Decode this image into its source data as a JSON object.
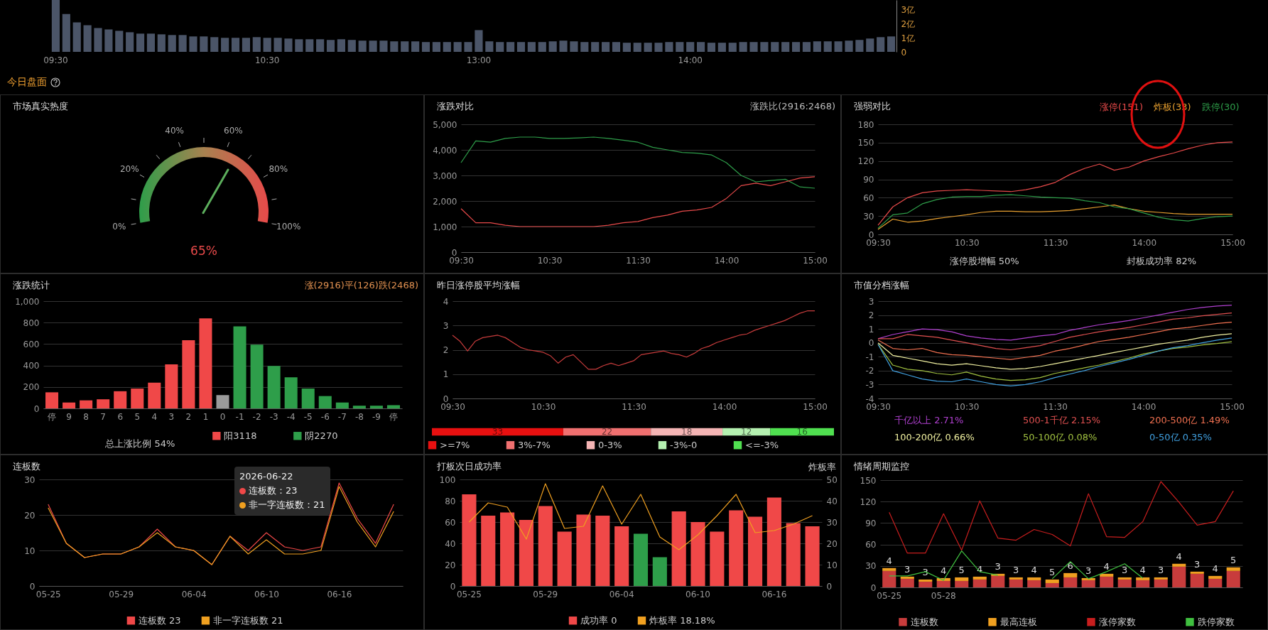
{
  "chart_data": [
    {
      "type": "bar",
      "categories": [
        "09:30",
        null,
        null,
        null,
        null,
        null,
        null,
        null,
        null,
        null,
        null,
        null,
        null,
        null,
        null,
        null,
        null,
        null,
        null,
        null,
        "10:30",
        null,
        null,
        null,
        null,
        null,
        null,
        null,
        null,
        null,
        null,
        null,
        null,
        null,
        null,
        null,
        null,
        null,
        null,
        null,
        "13:00",
        null,
        null,
        null,
        null,
        null,
        null,
        null,
        null,
        null,
        null,
        null,
        null,
        null,
        null,
        null,
        null,
        null,
        null,
        null,
        "14:00",
        null,
        null,
        null,
        null,
        null,
        null,
        null,
        null,
        null,
        null,
        null,
        null,
        null,
        null,
        null,
        null,
        null,
        null,
        null
      ],
      "values": [
        3.7,
        2.7,
        2.1,
        1.9,
        1.7,
        1.6,
        1.5,
        1.4,
        1.3,
        1.3,
        1.25,
        1.2,
        1.2,
        1.1,
        1.1,
        1.05,
        1.0,
        1.0,
        1.0,
        1.05,
        1.0,
        1.0,
        0.95,
        0.9,
        0.9,
        0.9,
        0.85,
        0.9,
        0.85,
        0.8,
        0.8,
        0.8,
        0.75,
        0.75,
        0.75,
        0.7,
        0.7,
        0.7,
        0.7,
        0.7,
        1.55,
        0.75,
        0.7,
        0.7,
        0.7,
        0.7,
        0.7,
        0.75,
        0.8,
        0.75,
        0.7,
        0.7,
        0.7,
        0.7,
        0.65,
        0.65,
        0.65,
        0.65,
        0.7,
        0.7,
        0.7,
        0.7,
        0.65,
        0.65,
        0.65,
        0.7,
        0.7,
        0.7,
        0.7,
        0.7,
        0.7,
        0.7,
        0.75,
        0.75,
        0.75,
        0.8,
        0.85,
        0.95,
        1.05,
        1.1
      ],
      "color": "#4b5568",
      "ylim": [
        0,
        3.7
      ],
      "yticks": [
        0,
        {
          "value": 1,
          "label": "1亿"
        },
        {
          "value": 2,
          "label": "2亿"
        },
        {
          "value": 3,
          "label": "3亿"
        }
      ],
      "annotations": [
        "今日盘面"
      ]
    },
    {
      "type": "other",
      "title": "市场真实热度",
      "values": [
        65
      ],
      "value_labels": [
        "65%"
      ],
      "annotations": [
        "0%",
        "20%",
        "40%",
        "60%",
        "80%",
        "100%"
      ]
    },
    {
      "type": "line",
      "title": "涨跌对比",
      "categories": [
        "09:30",
        null,
        null,
        null,
        null,
        null,
        "10:30",
        null,
        null,
        null,
        null,
        null,
        "11:30",
        null,
        null,
        null,
        null,
        null,
        "14:00",
        null,
        null,
        null,
        null,
        null,
        "15:00"
      ],
      "series": [
        {
          "color": "#2e9e4a",
          "values": [
            3500,
            4350,
            4300,
            4450,
            4500,
            4500,
            4450,
            4450,
            4470,
            4500,
            4450,
            4380,
            4300,
            4100,
            4000,
            3900,
            3870,
            3800,
            3500,
            3000,
            2750,
            2800,
            2850,
            2550,
            2500
          ]
        },
        {
          "color": "#e84a4a",
          "values": [
            1700,
            1150,
            1150,
            1050,
            1000,
            1000,
            1000,
            1000,
            1000,
            1000,
            1050,
            1150,
            1200,
            1350,
            1450,
            1600,
            1650,
            1750,
            2100,
            2600,
            2700,
            2600,
            2750,
            2900,
            2950
          ]
        }
      ],
      "ylim": [
        0,
        5000
      ],
      "yticks": [
        0,
        {
          "value": 1000,
          "label": "1,000"
        },
        {
          "value": 2000,
          "label": "2,000"
        },
        {
          "value": 3000,
          "label": "3,000"
        },
        {
          "value": 4000,
          "label": "4,000"
        },
        {
          "value": 5000,
          "label": "5,000"
        }
      ],
      "grid": "y",
      "annotations": [
        "涨跌比(2916:2468)"
      ]
    },
    {
      "type": "line",
      "title": "强弱对比",
      "categories": [
        "09:30",
        null,
        null,
        null,
        null,
        null,
        "10:30",
        null,
        null,
        null,
        null,
        null,
        "11:30",
        null,
        null,
        null,
        null,
        null,
        "14:00",
        null,
        null,
        null,
        null,
        null,
        "15:00"
      ],
      "series": [
        {
          "name": "涨停(151)",
          "color": "#e84a4a",
          "values": [
            15,
            45,
            60,
            68,
            71,
            72,
            73,
            72,
            71,
            70,
            73,
            78,
            85,
            98,
            108,
            115,
            105,
            110,
            120,
            127,
            133,
            140,
            146,
            150,
            151
          ]
        },
        {
          "name": "炸板(33)",
          "color": "#e8a030",
          "values": [
            8,
            25,
            20,
            22,
            26,
            29,
            32,
            36,
            38,
            38,
            37,
            37,
            38,
            39,
            42,
            45,
            48,
            42,
            38,
            36,
            34,
            33,
            33,
            33,
            33
          ]
        },
        {
          "name": "跌停(30)",
          "color": "#2e9e4a",
          "values": [
            10,
            32,
            35,
            50,
            57,
            61,
            62,
            62,
            64,
            65,
            63,
            61,
            60,
            59,
            55,
            52,
            45,
            42,
            35,
            28,
            24,
            22,
            26,
            29,
            30
          ]
        }
      ],
      "ylim": [
        0,
        180
      ],
      "yticks": [
        0,
        30,
        60,
        90,
        120,
        150,
        180
      ],
      "grid": "y",
      "legend": "top right",
      "annotations": [
        "涨停股增幅 50%",
        "封板成功率 82%"
      ]
    },
    {
      "type": "bar",
      "title": "涨跌统计",
      "categories": [
        "停",
        "9",
        "8",
        "7",
        "6",
        "5",
        "4",
        "3",
        "2",
        "1",
        "0",
        "-1",
        "-2",
        "-3",
        "-4",
        "-5",
        "-6",
        "-7",
        "-8",
        "-9",
        "停"
      ],
      "series": [
        {
          "name": "阳3118",
          "color": "#f04848",
          "values": [
            150,
            55,
            75,
            85,
            160,
            185,
            240,
            410,
            635,
            840,
            null,
            null,
            null,
            null,
            null,
            null,
            null,
            null,
            null,
            null,
            null
          ]
        },
        {
          "color": "#9a9a9a",
          "values": [
            null,
            null,
            null,
            null,
            null,
            null,
            null,
            null,
            null,
            null,
            125,
            null,
            null,
            null,
            null,
            null,
            null,
            null,
            null,
            null,
            null
          ]
        },
        {
          "name": "阴2270",
          "color": "#2e9e4a",
          "values": [
            null,
            null,
            null,
            null,
            null,
            null,
            null,
            null,
            null,
            null,
            null,
            765,
            595,
            395,
            290,
            185,
            115,
            55,
            25,
            25,
            30
          ]
        }
      ],
      "ylim": [
        0,
        1000
      ],
      "yticks": [
        0,
        200,
        400,
        600,
        800,
        {
          "value": 1000,
          "label": "1,000"
        }
      ],
      "grid": "y",
      "legend": "bottom",
      "annotations": [
        "涨(2916)平(126)跌(2468)",
        "总上涨比例 54%"
      ]
    },
    {
      "type": "line",
      "title": "昨日涨停股平均涨幅",
      "categories": [
        "09:30",
        null,
        null,
        null,
        null,
        null,
        null,
        null,
        null,
        null,
        null,
        null,
        "10:30",
        null,
        null,
        null,
        null,
        null,
        null,
        null,
        null,
        null,
        null,
        null,
        "11:30",
        null,
        null,
        null,
        null,
        null,
        null,
        null,
        null,
        null,
        null,
        null,
        "14:00",
        null,
        null,
        null,
        null,
        null,
        null,
        null,
        null,
        null,
        null,
        null,
        "15:00"
      ],
      "values": [
        2.6,
        2.35,
        1.95,
        2.35,
        2.5,
        2.55,
        2.6,
        2.5,
        2.3,
        2.1,
        2.0,
        1.95,
        1.9,
        1.75,
        1.45,
        1.7,
        1.8,
        1.5,
        1.2,
        1.2,
        1.35,
        1.45,
        1.35,
        1.45,
        1.55,
        1.8,
        1.85,
        1.9,
        1.95,
        1.85,
        1.8,
        1.7,
        1.85,
        2.05,
        2.15,
        2.3,
        2.4,
        2.5,
        2.6,
        2.65,
        2.8,
        2.9,
        3.0,
        3.1,
        3.2,
        3.35,
        3.5,
        3.6,
        3.6
      ],
      "color": "#c83c3c",
      "ylim": [
        0,
        4
      ],
      "yticks": [
        0,
        1,
        2,
        3,
        4
      ],
      "grid": "y"
    },
    {
      "type": "bar",
      "orientation": "horizontal",
      "stacked": true,
      "categories": [
        null
      ],
      "series": [
        {
          "name": ">=7%",
          "color": "#e81010",
          "values": [
            33
          ]
        },
        {
          "name": "3%-7%",
          "color": "#f07070",
          "values": [
            22
          ]
        },
        {
          "name": "0-3%",
          "color": "#f4b4b4",
          "values": [
            18
          ]
        },
        {
          "name": "-3%-0",
          "color": "#b4f0b0",
          "values": [
            12
          ]
        },
        {
          "name": "<=-3%",
          "color": "#50e050",
          "values": [
            16
          ]
        }
      ],
      "data_labels": true,
      "legend": "bottom",
      "tick_labels": false
    },
    {
      "type": "line",
      "title": "市值分档涨幅",
      "categories": [
        "09:30",
        null,
        null,
        null,
        null,
        null,
        "10:30",
        null,
        null,
        null,
        null,
        null,
        "11:30",
        null,
        null,
        null,
        null,
        null,
        "14:00",
        null,
        null,
        null,
        null,
        null,
        "15:00"
      ],
      "series": [
        {
          "name": "千亿以上 2.71%",
          "color": "#b040d0",
          "values": [
            0.3,
            0.6,
            0.8,
            1.0,
            0.95,
            0.8,
            0.5,
            0.35,
            0.25,
            0.2,
            0.35,
            0.5,
            0.6,
            0.9,
            1.1,
            1.3,
            1.45,
            1.6,
            1.8,
            2.0,
            2.2,
            2.4,
            2.55,
            2.65,
            2.71
          ]
        },
        {
          "name": "500-1千亿 2.15%",
          "color": "#e05050",
          "values": [
            0.3,
            0.3,
            0.6,
            0.5,
            0.4,
            0.2,
            0.0,
            -0.2,
            -0.4,
            -0.5,
            -0.35,
            -0.2,
            0.1,
            0.4,
            0.6,
            0.8,
            0.95,
            1.1,
            1.3,
            1.5,
            1.7,
            1.8,
            1.95,
            2.05,
            2.15
          ]
        },
        {
          "name": "200-500亿 1.49%",
          "color": "#f07050",
          "values": [
            0.2,
            -0.4,
            -0.5,
            -0.4,
            -0.7,
            -0.85,
            -0.9,
            -1.0,
            -1.1,
            -1.2,
            -1.05,
            -0.9,
            -0.6,
            -0.4,
            -0.15,
            0.1,
            0.25,
            0.4,
            0.6,
            0.8,
            1.0,
            1.1,
            1.25,
            1.4,
            1.49
          ]
        },
        {
          "name": "100-200亿 0.66%",
          "color": "#f0f0a0",
          "values": [
            0.0,
            -0.9,
            -1.1,
            -1.3,
            -1.5,
            -1.6,
            -1.5,
            -1.65,
            -1.8,
            -1.9,
            -1.85,
            -1.7,
            -1.5,
            -1.3,
            -1.1,
            -0.9,
            -0.7,
            -0.5,
            -0.3,
            -0.1,
            0.05,
            0.2,
            0.4,
            0.55,
            0.66
          ]
        },
        {
          "name": "50-100亿 0.08%",
          "color": "#a0c040",
          "values": [
            -0.1,
            -1.6,
            -1.9,
            -2.0,
            -2.2,
            -2.3,
            -2.1,
            -2.4,
            -2.6,
            -2.7,
            -2.65,
            -2.5,
            -2.2,
            -2.0,
            -1.8,
            -1.6,
            -1.35,
            -1.1,
            -0.8,
            -0.6,
            -0.4,
            -0.3,
            -0.15,
            -0.05,
            0.08
          ]
        },
        {
          "name": "0-50亿 0.35%",
          "color": "#40a0e0",
          "values": [
            -0.1,
            -2.0,
            -2.3,
            -2.6,
            -2.75,
            -2.8,
            -2.6,
            -2.8,
            -3.0,
            -3.1,
            -3.0,
            -2.8,
            -2.5,
            -2.25,
            -2.0,
            -1.7,
            -1.45,
            -1.2,
            -0.9,
            -0.6,
            -0.35,
            -0.2,
            0.0,
            0.2,
            0.35
          ]
        }
      ],
      "ylim": [
        -4,
        3
      ],
      "yticks": [
        -4,
        -3,
        -2,
        -1,
        0,
        1,
        2,
        3
      ],
      "grid": "y",
      "legend": "bottom"
    },
    {
      "type": "line",
      "title": "连板数",
      "categories": [
        "05-25",
        null,
        null,
        null,
        "05-29",
        null,
        null,
        null,
        "06-04",
        null,
        null,
        null,
        "06-10",
        null,
        null,
        null,
        "06-16",
        null,
        null,
        null
      ],
      "series": [
        {
          "name": "连板数 23",
          "color": "#f04848",
          "values": [
            23,
            12,
            8,
            9,
            9,
            11,
            16,
            11,
            10,
            6,
            14,
            10,
            15,
            11,
            10,
            11,
            29,
            19,
            12,
            23
          ]
        },
        {
          "name": "非一字连板数 21",
          "color": "#f0a020",
          "values": [
            22,
            12,
            8,
            9,
            9,
            11,
            15,
            11,
            10,
            6,
            14,
            9,
            13,
            9,
            9,
            10,
            28,
            18,
            11,
            21
          ]
        }
      ],
      "ylim": [
        0,
        30
      ],
      "yticks": [
        0,
        10,
        20,
        30
      ],
      "grid": "y",
      "legend": "bottom",
      "annotations": [
        "2026-06-22",
        "连板数：23",
        "非一字连板数：21"
      ]
    },
    {
      "type": "bar",
      "title": "打板次日成功率",
      "categories": [
        "05-25",
        null,
        null,
        null,
        "05-29",
        null,
        null,
        null,
        "06-04",
        null,
        null,
        null,
        "06-10",
        null,
        null,
        null,
        "06-16",
        null,
        null
      ],
      "series": [
        {
          "name": "成功率 0",
          "color": "#f04848",
          "colors": [
            "#f04848",
            "#f04848",
            "#f04848",
            "#f04848",
            "#f04848",
            "#f04848",
            "#f04848",
            "#f04848",
            "#f04848",
            "#2e9e4a",
            "#2e9e4a",
            "#f04848",
            "#f04848",
            "#f04848",
            "#f04848",
            "#f04848",
            "#f04848",
            "#f04848",
            "#f04848"
          ],
          "values": [
            86,
            66,
            69,
            62,
            75,
            51,
            67,
            66,
            56,
            49,
            27,
            70,
            60,
            51,
            71,
            65,
            83,
            59,
            56
          ]
        },
        {
          "name": "炸板率 18.18%",
          "type": "line",
          "axis": "y2",
          "color": "#f0a020",
          "values": [
            30,
            39,
            37,
            22,
            48,
            27,
            28,
            47,
            29,
            43,
            23,
            17,
            24,
            33,
            43,
            25,
            26,
            29,
            33
          ]
        }
      ],
      "ylim": [
        0,
        100
      ],
      "yticks": [
        0,
        20,
        40,
        60,
        80,
        100
      ],
      "y2lim": [
        0,
        50
      ],
      "y2ticks": [
        0,
        10,
        20,
        30,
        40,
        50
      ],
      "y2label": "炸板率",
      "grid": "y",
      "legend": "bottom"
    },
    {
      "type": "bar",
      "title": "情绪周期监控",
      "stacked": true,
      "categories": [
        "05-25",
        null,
        null,
        "05-28",
        null,
        null,
        null,
        null,
        null,
        null,
        null,
        null,
        null,
        null,
        null,
        null,
        null,
        null,
        null,
        null
      ],
      "series": [
        {
          "name": "连板数",
          "color": "#c83c3c",
          "values": [
            23,
            12,
            8,
            9,
            9,
            11,
            16,
            11,
            10,
            6,
            14,
            10,
            15,
            11,
            10,
            11,
            29,
            19,
            12,
            23
          ]
        },
        {
          "name": "最高连板",
          "color": "#f0a020",
          "values": [
            4,
            3,
            3,
            4,
            5,
            4,
            3,
            3,
            4,
            5,
            6,
            3,
            4,
            3,
            4,
            3,
            4,
            3,
            4,
            5
          ],
          "value_labels": [
            "4",
            "3",
            "3",
            "4",
            "5",
            "4",
            "3",
            "3",
            "4",
            "5",
            "6",
            "3",
            "4",
            "3",
            "4",
            "3",
            "4",
            "3",
            "4",
            "5"
          ]
        },
        {
          "name": "涨停家数",
          "type": "line",
          "color": "#c81e1e",
          "values": [
            105,
            48,
            48,
            103,
            52,
            121,
            69,
            66,
            81,
            74,
            58,
            131,
            71,
            70,
            92,
            148,
            119,
            87,
            92,
            135
          ]
        },
        {
          "name": "跌停家数",
          "type": "line",
          "color": "#40c040",
          "values": [
            16,
            16,
            22,
            10,
            51,
            22,
            17,
            null,
            null,
            12,
            36,
            12,
            22,
            33,
            13,
            null,
            null,
            null,
            null,
            null
          ]
        }
      ],
      "ylim": [
        0,
        150
      ],
      "yticks": [
        0,
        30,
        60,
        90,
        120,
        150
      ],
      "grid": "y",
      "legend": "bottom"
    }
  ]
}
